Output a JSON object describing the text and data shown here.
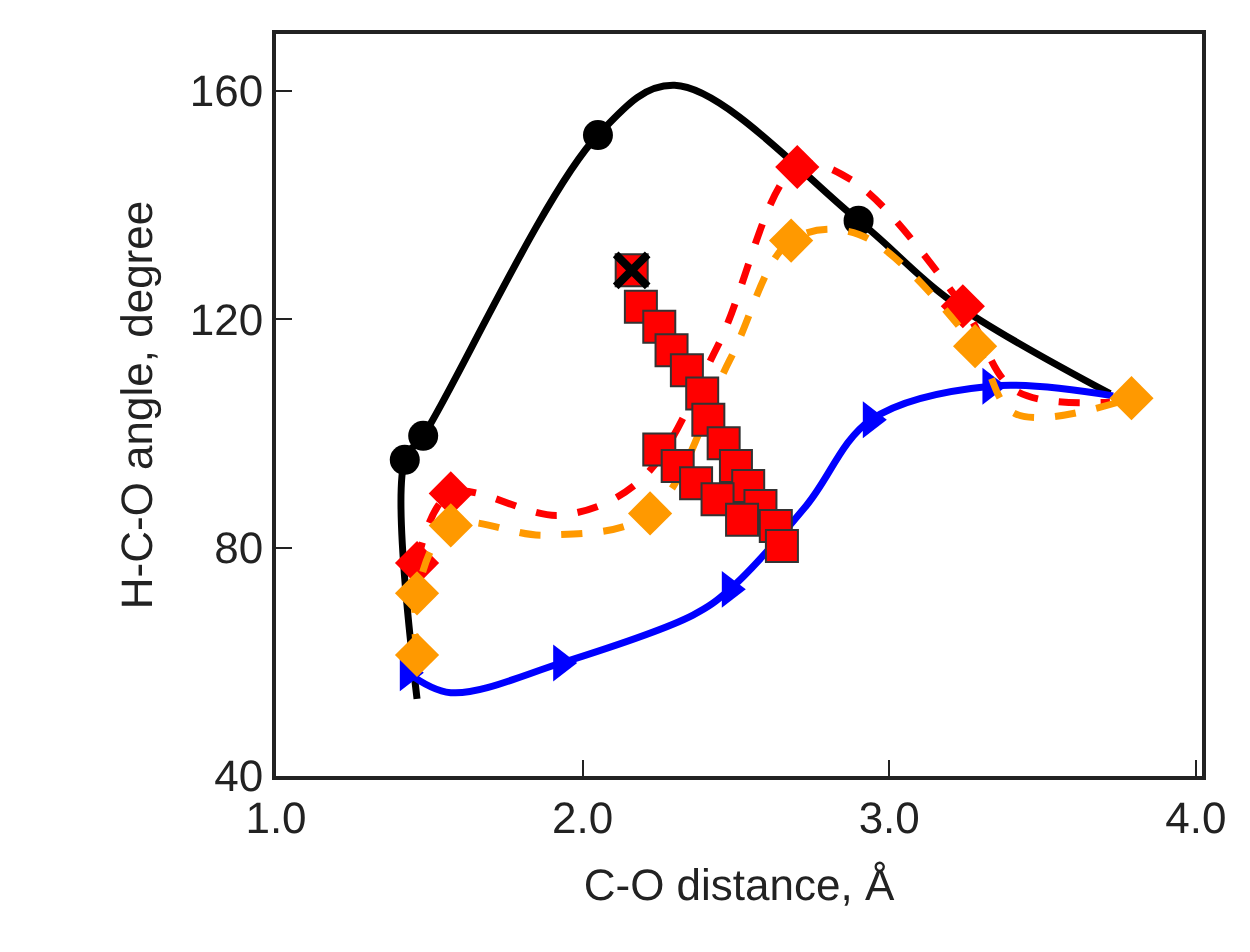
{
  "chart_data": {
    "type": "line",
    "xlabel": "C-O distance, Å",
    "ylabel": "H-C-O angle, degree",
    "xlim": [
      1.0,
      4.02
    ],
    "ylim": [
      40,
      170
    ],
    "xticks": [
      {
        "value": 1.0,
        "label": "1.0"
      },
      {
        "value": 2.0,
        "label": "2.0"
      },
      {
        "value": 3.0,
        "label": "3.0"
      },
      {
        "value": 4.0,
        "label": "4.0"
      }
    ],
    "yticks": [
      40,
      80,
      120,
      160
    ],
    "grid": false,
    "series": [
      {
        "color": "#000000",
        "line_style": "solid",
        "marker": "none",
        "x": [
          1.46,
          1.42,
          1.48,
          2.05,
          2.3,
          2.9,
          3.2,
          3.72
        ],
        "values": [
          53.5,
          95.4,
          99.6,
          152.3,
          161,
          137.3,
          123.3,
          107
        ]
      },
      {
        "type": "scatter",
        "color": "#000000",
        "marker": "circle",
        "x": [
          1.42,
          1.48,
          2.05,
          2.9
        ],
        "values": [
          95.4,
          99.6,
          152.3,
          137.3
        ]
      },
      {
        "color": "#0000ff",
        "line_style": "solid",
        "marker": "none",
        "x": [
          1.43,
          1.57,
          1.93,
          2.36,
          2.48,
          2.73,
          2.94,
          3.33,
          3.73
        ],
        "values": [
          58.1,
          54.6,
          59.8,
          68.2,
          72.7,
          87.4,
          102.4,
          108.3,
          106.6
        ]
      },
      {
        "type": "scatter",
        "color": "#0000ff",
        "marker": "triangle",
        "x": [
          1.43,
          1.93,
          2.48,
          2.94,
          3.33
        ],
        "values": [
          58.1,
          59.8,
          72.7,
          102.4,
          108.3
        ]
      },
      {
        "color": "#ff0000",
        "line_style": "dashed",
        "marker": "none",
        "x": [
          1.46,
          1.57,
          1.93,
          2.19,
          2.44,
          2.7,
          2.88,
          3.24,
          3.41,
          3.72
        ],
        "values": [
          77.3,
          89.5,
          85.7,
          91.9,
          115.3,
          146.7,
          144.3,
          122.3,
          107.6,
          105.5
        ]
      },
      {
        "type": "scatter",
        "color": "#ff0000",
        "marker": "diamond",
        "x": [
          1.46,
          1.57,
          2.7,
          3.24
        ],
        "values": [
          77.3,
          89.5,
          146.7,
          122.3
        ]
      },
      {
        "color": "#ff9900",
        "line_style": "dashed",
        "marker": "none",
        "x": [
          1.46,
          1.46,
          1.57,
          1.88,
          2.22,
          2.48,
          2.68,
          2.9,
          3.28,
          3.41,
          3.79
        ],
        "values": [
          61.2,
          72.0,
          83.9,
          82.2,
          86.0,
          112.9,
          133.8,
          134.9,
          115.3,
          103.5,
          106.2
        ]
      },
      {
        "type": "scatter",
        "color": "#ff9900",
        "marker": "diamond",
        "x": [
          1.46,
          1.46,
          1.57,
          2.22,
          2.68,
          3.28,
          3.79
        ],
        "values": [
          61.2,
          72.0,
          83.9,
          86.0,
          133.8,
          115.3,
          106.2
        ]
      },
      {
        "type": "scatter",
        "color": "#ff0000",
        "marker": "square",
        "x": [
          2.16,
          2.19,
          2.25,
          2.29,
          2.34,
          2.39,
          2.41,
          2.46,
          2.5,
          2.54,
          2.58,
          2.63,
          2.65,
          2.25,
          2.31,
          2.37,
          2.44,
          2.52
        ],
        "values": [
          128.6,
          122.2,
          118.7,
          114.6,
          111.1,
          107.0,
          102.4,
          98.3,
          94.3,
          90.8,
          87.3,
          83.8,
          80.3,
          97.2,
          94.3,
          91.3,
          88.5,
          84.9
        ]
      },
      {
        "type": "scatter",
        "color": "#000000",
        "marker": "cross",
        "x": [
          2.16
        ],
        "values": [
          128.6
        ]
      }
    ]
  }
}
